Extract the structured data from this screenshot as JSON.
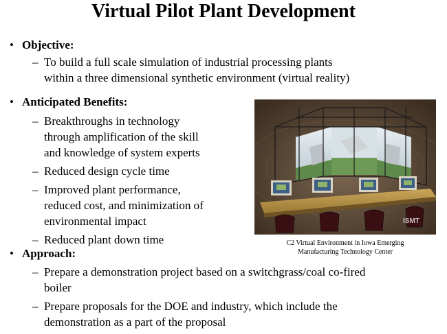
{
  "title": "Virtual Pilot Plant Development",
  "objective": {
    "heading": "Objective:",
    "items": [
      "To build a full scale simulation of industrial processing plants\nwithin a three dimensional synthetic environment (virtual reality)"
    ]
  },
  "benefits": {
    "heading": "Anticipated Benefits:",
    "items": [
      "Breakthroughs in technology\nthrough amplification of the skill\nand knowledge of system experts",
      "Reduced design cycle time",
      "Improved plant performance,\nreduced cost, and minimization of\nenvironmental impact",
      "Reduced plant down time"
    ]
  },
  "approach": {
    "heading": "Approach:",
    "items": [
      "Prepare a demonstration project based on a switchgrass/coal co-fired\nboiler",
      "Prepare proposals for the DOE and industry, which include the\ndemonstration as a part of the proposal"
    ]
  },
  "bullet_glyph": "•",
  "dash_glyph": "–",
  "figure": {
    "logo_text": "ISMT",
    "caption": "C2 Virtual Environment in Iowa Emerging\nManufacturing Technology Center"
  }
}
